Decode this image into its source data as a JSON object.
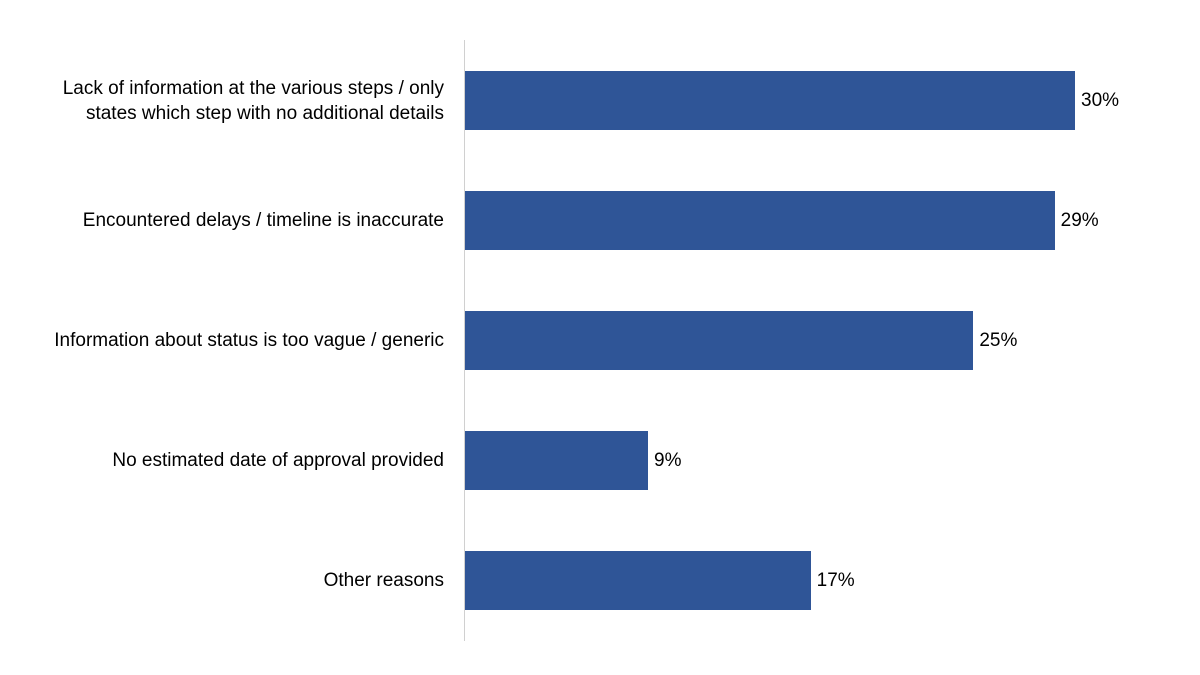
{
  "chart_data": {
    "type": "bar",
    "orientation": "horizontal",
    "title": "",
    "xlabel": "",
    "ylabel": "",
    "categories": [
      "Lack of information at the various steps / only states which step with no additional details",
      "Encountered delays / timeline is inaccurate",
      "Information about status is too vague / generic",
      "No estimated date of approval provided",
      "Other reasons"
    ],
    "values": [
      30,
      29,
      25,
      9,
      17
    ],
    "value_labels": [
      "30%",
      "29%",
      "25%",
      "9%",
      "17%"
    ],
    "unit": "%",
    "xlim": [
      0,
      30
    ],
    "grid": false,
    "legend": null,
    "bar_color": "#2F5597"
  },
  "rows": [
    {
      "label_line1": "Lack of information at the various steps / only",
      "label_line2": "states which step with no additional details",
      "value": 30,
      "value_label": "30%"
    },
    {
      "label_line1": "Encountered delays / timeline is inaccurate",
      "label_line2": "",
      "value": 29,
      "value_label": "29%"
    },
    {
      "label_line1": "Information about status is too vague / generic",
      "label_line2": "",
      "value": 25,
      "value_label": "25%"
    },
    {
      "label_line1": "No estimated date of approval provided",
      "label_line2": "",
      "value": 9,
      "value_label": "9%"
    },
    {
      "label_line1": "Other reasons",
      "label_line2": "",
      "value": 17,
      "value_label": "17%"
    }
  ],
  "style": {
    "bar_color": "#2F5597",
    "axis_color": "#D0D0D0"
  }
}
